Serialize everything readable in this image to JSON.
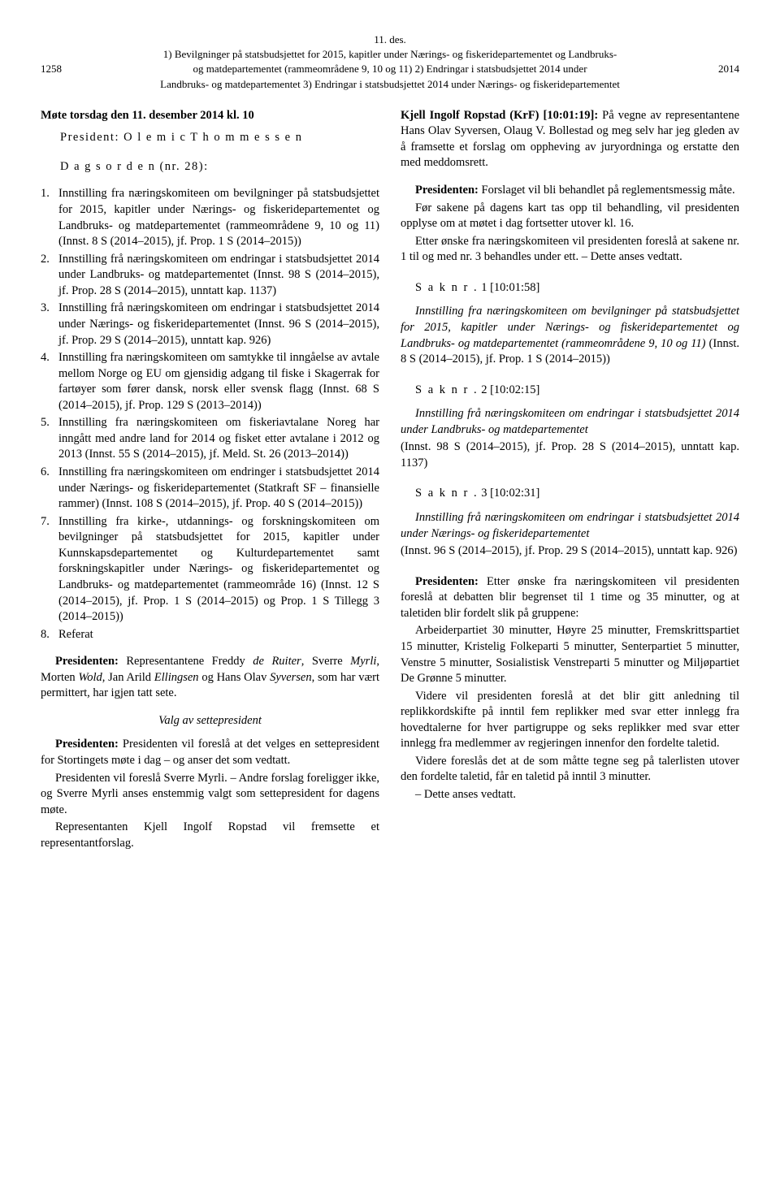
{
  "header": {
    "date_line": "11. des.",
    "title_1": "1) Bevilgninger på statsbudsjettet for 2015, kapitler under Nærings- og fiskeridepartementet og Landbruks-",
    "page_num": "1258",
    "title_2": "og matdepartementet (rammeområdene 9, 10 og 11) 2) Endringar i statsbudsjettet 2014 under",
    "year": "2014",
    "title_3": "Landbruks- og matdepartementet 3) Endringar i statsbudsjettet 2014 under Nærings- og fiskeridepartementet"
  },
  "left": {
    "meeting_title": "Møte torsdag den 11. desember 2014 kl. 10",
    "president": "President: O l e m i c   T h o m m e s s e n",
    "dagsorden": "D a g s o r d e n   (nr. 28):",
    "agenda": [
      {
        "n": "1.",
        "t": "Innstilling fra næringskomiteen om bevilgninger på statsbudsjettet for 2015, kapitler under Nærings- og fiskeridepartementet og Landbruks- og matdepartementet (rammeområdene 9, 10 og 11) (Innst. 8 S (2014–2015), jf. Prop. 1 S (2014–2015))"
      },
      {
        "n": "2.",
        "t": "Innstilling frå næringskomiteen om endringar i statsbudsjettet 2014 under Landbruks- og matdepartementet (Innst. 98 S (2014–2015), jf. Prop. 28 S (2014–2015), unntatt kap. 1137)"
      },
      {
        "n": "3.",
        "t": "Innstilling frå næringskomiteen om endringar i statsbudsjettet 2014 under Nærings- og fiskeridepartementet (Innst. 96 S (2014–2015), jf. Prop. 29 S (2014–2015), unntatt kap. 926)"
      },
      {
        "n": "4.",
        "t": "Innstilling fra næringskomiteen om samtykke til inngåelse av avtale mellom Norge og EU om gjensidig adgang til fiske i Skagerrak for fartøyer som fører dansk, norsk eller svensk flagg (Innst. 68 S (2014–2015), jf. Prop. 129 S (2013–2014))"
      },
      {
        "n": "5.",
        "t": "Innstilling fra næringskomiteen om fiskeriavtalane Noreg har inngått med andre land for 2014 og fisket etter avtalane i 2012 og 2013 (Innst. 55 S (2014–2015), jf. Meld. St. 26 (2013–2014))"
      },
      {
        "n": "6.",
        "t": "Innstilling fra næringskomiteen om endringer i statsbudsjettet 2014 under Nærings- og fiskeridepartementet (Statkraft SF – finansielle rammer) (Innst. 108 S (2014–2015), jf. Prop. 40 S (2014–2015))"
      },
      {
        "n": "7.",
        "t": "Innstilling fra kirke-, utdannings- og forskningskomiteen om bevilgninger på statsbudsjettet for 2015, kapitler under Kunnskapsdepartementet og Kulturdepartementet samt forskningskapitler under Nærings- og fiskeridepartementet og Landbruks- og matdepartementet (rammeområde 16) (Innst. 12 S (2014–2015), jf. Prop. 1 S (2014–2015) og Prop. 1 S Tillegg 3 (2014–2015))"
      },
      {
        "n": "8.",
        "t": "Referat"
      }
    ],
    "presidenten_reps_lead": "Presidenten:",
    "presidenten_reps": " Representantene Freddy ",
    "rep1": "de Ruiter",
    "reps_mid1": ", Sverre ",
    "rep2": "Myrli",
    "reps_mid2": ", Morten ",
    "rep3": "Wold",
    "reps_mid3": ", Jan Arild ",
    "rep4": "Ellingsen",
    "reps_mid4": " og Hans Olav ",
    "rep5": "Syversen",
    "reps_end": ", som har vært permittert, har igjen tatt sete.",
    "valg_title": "Valg av settepresident",
    "valg_p1_lead": "Presidenten:",
    "valg_p1": " Presidenten vil foreslå at det velges en settepresident for Stortingets møte i dag – og anser det som vedtatt.",
    "valg_p2": "Presidenten vil foreslå Sverre Myrli. – Andre forslag foreligger ikke, og Sverre Myrli anses enstemmig valgt som settepresident for dagens møte.",
    "valg_p3": "Representanten Kjell Ingolf Ropstad vil fremsette et representantforslag."
  },
  "right": {
    "ropstad_lead": "Kjell Ingolf Ropstad (KrF) [10:01:19]:",
    "ropstad_text": " På vegne av representantene Hans Olav Syversen, Olaug V. Bollestad og meg selv har jeg gleden av å framsette et forslag om oppheving av juryordninga og erstatte den med meddomsrett.",
    "p1_lead": "Presidenten:",
    "p1": " Forslaget vil bli behandlet på reglementsmessig måte.",
    "p2": "Før sakene på dagens kart tas opp til behandling, vil presidenten opplyse om at møtet i dag fortsetter utover kl. 16.",
    "p3": "Etter ønske fra næringskomiteen vil presidenten foreslå at sakene nr. 1 til og med nr. 3 behandles under ett. – Dette anses vedtatt.",
    "sak1_label": "S a k   n r .",
    "sak1_num": "  1  [10:01:58]",
    "sak1_i1": "Innstilling fra næringskomiteen om bevilgninger på statsbudsjettet for 2015, kapitler under Nærings- og fiskeridepartementet og Landbruks- og matdepartementet (rammeområdene 9, 10 og 11)",
    "sak1_i2": " (Innst. 8 S (2014–2015), jf. Prop. 1 S (2014–2015))",
    "sak2_label": "S a k   n r .",
    "sak2_num": "  2  [10:02:15]",
    "sak2_i1": "Innstilling frå næringskomiteen om endringar i statsbudsjettet 2014 under Landbruks- og matdepartementet",
    "sak2_i2": "(Innst. 98 S (2014–2015), jf. Prop. 28 S (2014–2015), unntatt kap. 1137)",
    "sak3_label": "S a k   n r .",
    "sak3_num": "  3  [10:02:31]",
    "sak3_i1": "Innstilling frå næringskomiteen om endringar i statsbudsjettet 2014 under Nærings- og fiskeridepartementet",
    "sak3_i2": "(Innst. 96 S (2014–2015), jf. Prop. 29 S (2014–2015), unntatt kap. 926)",
    "pres2_lead": "Presidenten:",
    "pres2_p1": " Etter ønske fra næringskomiteen vil presidenten foreslå at debatten blir begrenset til 1 time og 35 minutter, og at taletiden blir fordelt slik på gruppene:",
    "pres2_p2": "Arbeiderpartiet 30 minutter, Høyre 25 minutter, Fremskrittspartiet 15 minutter, Kristelig Folkeparti 5 minutter, Senterpartiet 5 minutter, Venstre 5 minutter, Sosialistisk Venstreparti 5 minutter og Miljøpartiet De Grønne 5 minutter.",
    "pres2_p3": "Videre vil presidenten foreslå at det blir gitt anledning til replikkordskifte på inntil fem replikker med svar etter innlegg fra hovedtalerne for hver partigruppe og seks replikker med svar etter innlegg fra medlemmer av regjeringen innenfor den fordelte taletid.",
    "pres2_p4": "Videre foreslås det at de som måtte tegne seg på talerlisten utover den fordelte taletid, får en taletid på inntil 3 minutter.",
    "pres2_p5": "– Dette anses vedtatt."
  }
}
